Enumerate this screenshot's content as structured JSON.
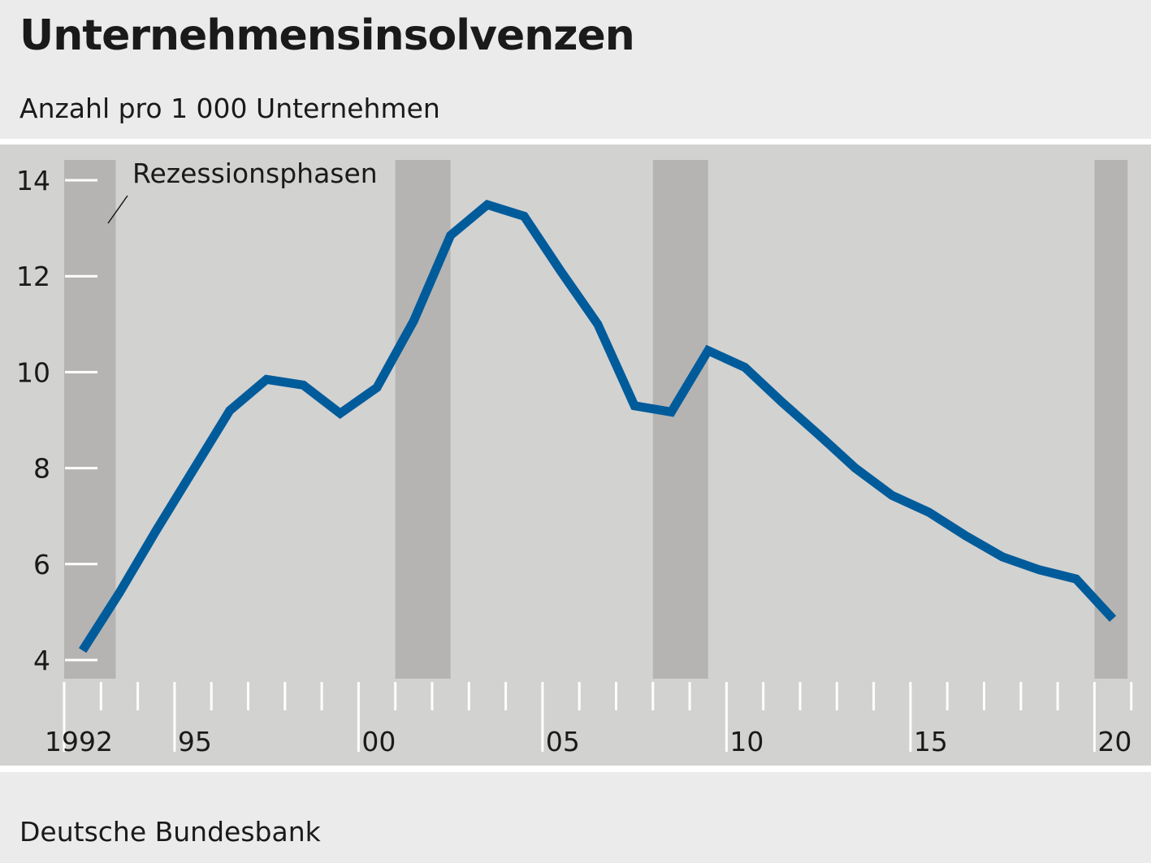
{
  "chart_data": {
    "type": "line",
    "title": "Unternehmensinsolvenzen",
    "subtitle": "Anzahl pro 1 000 Unternehmen",
    "source": "Deutsche Bundesbank",
    "annotation": "Rezessionsphasen",
    "xlabel": "",
    "ylabel": "",
    "ylim": [
      4,
      14
    ],
    "yticks": [
      4,
      6,
      8,
      10,
      12,
      14
    ],
    "xlim": [
      1992,
      2021
    ],
    "xtick_labels": [
      {
        "year": 1992,
        "label": "1992"
      },
      {
        "year": 1995,
        "label": "95"
      },
      {
        "year": 2000,
        "label": "00"
      },
      {
        "year": 2005,
        "label": "05"
      },
      {
        "year": 2010,
        "label": "10"
      },
      {
        "year": 2015,
        "label": "15"
      },
      {
        "year": 2020,
        "label": "20"
      }
    ],
    "grid": false,
    "line_color": "#005b9b",
    "recession_color": "#b5b4b2",
    "recessions": [
      [
        1992.0,
        1993.4
      ],
      [
        2001.0,
        2002.5
      ],
      [
        2008.0,
        2009.5
      ],
      [
        2020.0,
        2020.9
      ]
    ],
    "x": [
      1992,
      1993,
      1994,
      1995,
      1996,
      1997,
      1998,
      1999,
      2000,
      2001,
      2002,
      2003,
      2004,
      2005,
      2006,
      2007,
      2008,
      2009,
      2010,
      2011,
      2012,
      2013,
      2014,
      2015,
      2016,
      2017,
      2018,
      2019,
      2020
    ],
    "values": [
      4.2,
      5.4,
      6.7,
      7.95,
      9.2,
      9.85,
      9.73,
      9.14,
      9.68,
      11.07,
      12.85,
      13.49,
      13.25,
      12.1,
      11.0,
      9.3,
      9.17,
      10.45,
      10.1,
      9.38,
      8.7,
      8.0,
      7.43,
      7.08,
      6.59,
      6.15,
      5.88,
      5.69,
      4.86
    ]
  }
}
